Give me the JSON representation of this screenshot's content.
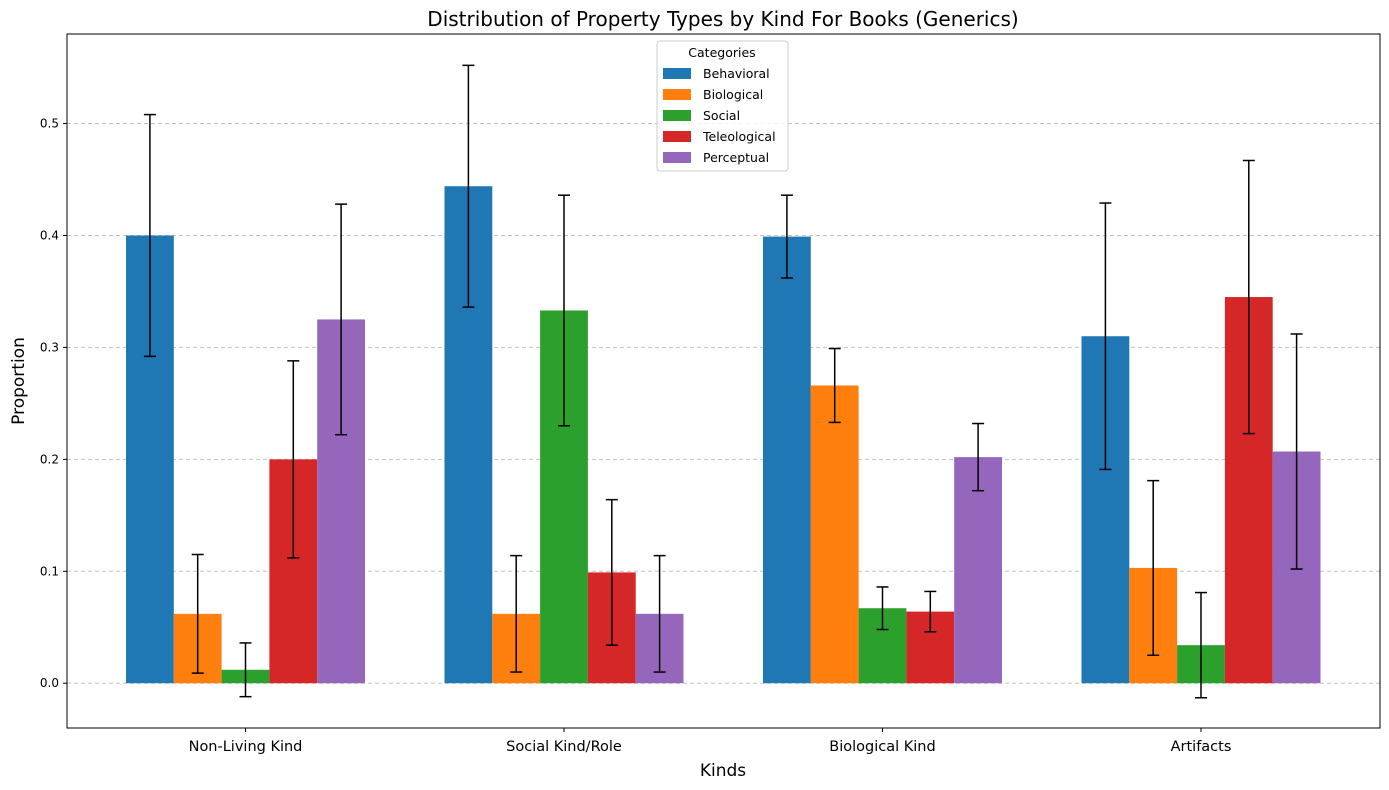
{
  "chart_data": {
    "type": "bar",
    "title": "Distribution of Property Types by Kind For Books (Generics)",
    "xlabel": "Kinds",
    "ylabel": "Proportion",
    "ylim": [
      -0.04,
      0.58
    ],
    "yticks": [
      "0.0",
      "0.1",
      "0.2",
      "0.3",
      "0.4",
      "0.5"
    ],
    "grid": "y-dashed",
    "legend": {
      "title": "Categories",
      "placement": "top-center"
    },
    "categories": [
      "Non-Living Kind",
      "Social Kind/Role",
      "Biological Kind",
      "Artifacts"
    ],
    "series": [
      {
        "name": "Behavioral",
        "color": "#1f77b4",
        "values": [
          0.4,
          0.444,
          0.399,
          0.31
        ],
        "err": [
          0.108,
          0.108,
          0.037,
          0.119
        ]
      },
      {
        "name": "Biological",
        "color": "#ff7f0e",
        "values": [
          0.062,
          0.062,
          0.266,
          0.103
        ],
        "err": [
          0.053,
          0.052,
          0.033,
          0.078
        ]
      },
      {
        "name": "Social",
        "color": "#2ca02c",
        "values": [
          0.012,
          0.333,
          0.067,
          0.034
        ],
        "err": [
          0.024,
          0.103,
          0.019,
          0.047
        ]
      },
      {
        "name": "Teleological",
        "color": "#d62728",
        "values": [
          0.2,
          0.099,
          0.064,
          0.345
        ],
        "err": [
          0.088,
          0.065,
          0.018,
          0.122
        ]
      },
      {
        "name": "Perceptual",
        "color": "#9467bd",
        "values": [
          0.325,
          0.062,
          0.202,
          0.207
        ],
        "err": [
          0.103,
          0.052,
          0.03,
          0.105
        ]
      }
    ]
  }
}
